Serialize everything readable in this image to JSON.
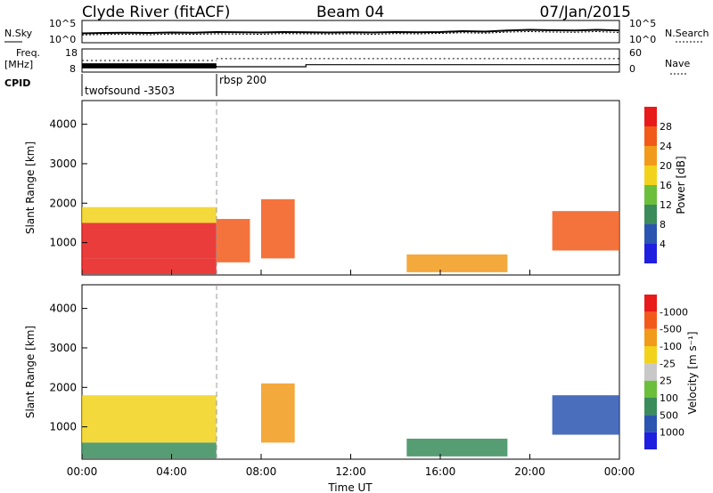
{
  "header": {
    "title": "Clyde River (fitACF)",
    "beam": "Beam 04",
    "date": "07/Jan/2015"
  },
  "chart_data": [
    {
      "type": "line",
      "panel": "noise",
      "left_label": "N.Sky",
      "right_label": "N.Search",
      "left_ticks": [
        "10^5",
        "10^0"
      ],
      "right_ticks": [
        "10^5",
        "10^0"
      ],
      "x": [
        0,
        1,
        2,
        3,
        4,
        5,
        6,
        7,
        8,
        9,
        10,
        11,
        12,
        13,
        14,
        15,
        16,
        17,
        18,
        19,
        20,
        21,
        22,
        23,
        24
      ],
      "series": [
        {
          "values": [
            0.42,
            0.44,
            0.45,
            0.44,
            0.46,
            0.45,
            0.48,
            0.47,
            0.46,
            0.48,
            0.47,
            0.46,
            0.47,
            0.46,
            0.48,
            0.47,
            0.48,
            0.52,
            0.5,
            0.55,
            0.58,
            0.56,
            0.55,
            0.58,
            0.55
          ]
        },
        {
          "values": [
            0.35,
            0.37,
            0.38,
            0.36,
            0.39,
            0.38,
            0.4,
            0.39,
            0.38,
            0.41,
            0.4,
            0.39,
            0.4,
            0.38,
            0.41,
            0.4,
            0.42,
            0.45,
            0.43,
            0.48,
            0.5,
            0.48,
            0.47,
            0.5,
            0.46
          ]
        }
      ]
    },
    {
      "type": "line",
      "panel": "frequency",
      "left_label": "Freq.",
      "left_unit": "[MHz]",
      "right_label": "Nave",
      "left_ticks": [
        "18",
        "8"
      ],
      "right_ticks": [
        "60",
        "0"
      ],
      "freq_segments": [
        {
          "x": [
            0,
            6
          ],
          "value": 10.5
        },
        {
          "x": [
            6,
            10
          ],
          "value": 10.3
        },
        {
          "x": [
            10,
            24
          ],
          "value": 11.2
        }
      ],
      "nave_segments": [
        {
          "x": [
            0,
            6
          ],
          "value": 30
        },
        {
          "x": [
            6,
            24
          ],
          "value": 35
        }
      ],
      "ylim": [
        8,
        18
      ]
    },
    {
      "type": "table",
      "panel": "cpid",
      "label": "CPID",
      "segments": [
        {
          "start": 0,
          "end": 6,
          "label": "twofsound -3503"
        },
        {
          "start": 6,
          "end": 24,
          "label": "rbsp 200"
        }
      ]
    },
    {
      "type": "heatmap",
      "panel": "power",
      "ylabel": "Slant Range [km]",
      "xlabel": "",
      "ylim": [
        180,
        4600
      ],
      "yticks": [
        1000,
        2000,
        3000,
        4000
      ],
      "xlim": [
        0,
        24
      ],
      "colorbar": {
        "label": "Power [dB]",
        "ticks": [
          "4",
          "8",
          "12",
          "16",
          "20",
          "24",
          "28"
        ],
        "colors": [
          "#1f1fe0",
          "#2a55b0",
          "#3a8c5a",
          "#6bbf3a",
          "#f2d21a",
          "#f29a1a",
          "#f25a1a",
          "#e81a1a"
        ]
      },
      "regions": [
        {
          "x": [
            0,
            6
          ],
          "y": [
            200,
            600
          ],
          "level": 7
        },
        {
          "x": [
            0,
            6
          ],
          "y": [
            600,
            1500
          ],
          "level": 7
        },
        {
          "x": [
            0,
            6
          ],
          "y": [
            1500,
            1900
          ],
          "level": 4
        },
        {
          "x": [
            6,
            7.5
          ],
          "y": [
            500,
            1600
          ],
          "level": 6
        },
        {
          "x": [
            8,
            9.5
          ],
          "y": [
            600,
            2100
          ],
          "level": 6
        },
        {
          "x": [
            14.5,
            19
          ],
          "y": [
            250,
            700
          ],
          "level": 5
        },
        {
          "x": [
            21,
            24
          ],
          "y": [
            800,
            1800
          ],
          "level": 6
        }
      ]
    },
    {
      "type": "heatmap",
      "panel": "velocity",
      "ylabel": "Slant Range [km]",
      "xlabel": "Time UT",
      "ylim": [
        180,
        4600
      ],
      "yticks": [
        1000,
        2000,
        3000,
        4000
      ],
      "xlim": [
        0,
        24
      ],
      "xticks": [
        "00:00",
        "04:00",
        "08:00",
        "12:00",
        "16:00",
        "20:00",
        "00:00"
      ],
      "colorbar": {
        "label": "Velocity [m s⁻¹]",
        "ticks": [
          "1000",
          "500",
          "100",
          "25",
          "-25",
          "-100",
          "-500",
          "-1000"
        ],
        "colors": [
          "#1f1fe0",
          "#2a55b0",
          "#3a8c5a",
          "#6bbf3a",
          "#c8c8c8",
          "#f2d21a",
          "#f29a1a",
          "#f25a1a",
          "#e81a1a"
        ]
      },
      "regions": [
        {
          "x": [
            0,
            6
          ],
          "y": [
            600,
            1800
          ],
          "level": 5
        },
        {
          "x": [
            0,
            6
          ],
          "y": [
            200,
            600
          ],
          "level": 2
        },
        {
          "x": [
            8,
            9.5
          ],
          "y": [
            600,
            2100
          ],
          "level": 6
        },
        {
          "x": [
            14.5,
            19
          ],
          "y": [
            250,
            700
          ],
          "level": 2
        },
        {
          "x": [
            21,
            24
          ],
          "y": [
            800,
            1800
          ],
          "level": 1
        }
      ]
    }
  ]
}
